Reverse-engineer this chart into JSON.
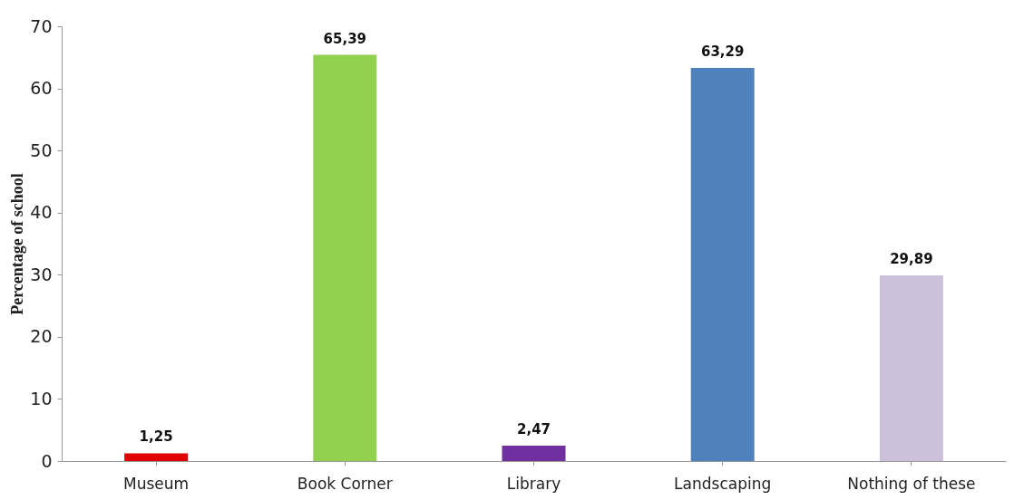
{
  "chart_data": {
    "type": "bar",
    "ylabel": "Percentage of school",
    "categories": [
      "Museum",
      "Book Corner",
      "Library",
      "Landscaping",
      "Nothing of these"
    ],
    "values": [
      1.25,
      65.39,
      2.47,
      63.29,
      29.89
    ],
    "value_labels": [
      "1,25",
      "65,39",
      "2,47",
      "63,29",
      "29,89"
    ],
    "colors": [
      "#e00000",
      "#92d050",
      "#7030a0",
      "#4f81bd",
      "#ccc0da"
    ],
    "ylim": [
      0,
      70
    ],
    "yticks": [
      0,
      10,
      20,
      30,
      40,
      50,
      60,
      70
    ],
    "grid": false,
    "legend": false
  }
}
